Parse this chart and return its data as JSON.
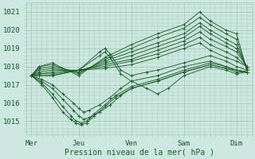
{
  "xlabel": "Pression niveau de la mer( hPa )",
  "yticks": [
    1015,
    1016,
    1017,
    1018,
    1019,
    1020,
    1021
  ],
  "ylim": [
    1014.3,
    1021.5
  ],
  "xlim": [
    0,
    4.3
  ],
  "xtick_labels": [
    "Mer",
    "Jeu",
    "Ven",
    "Sam",
    "Dim"
  ],
  "xtick_positions": [
    0.1,
    1.0,
    2.0,
    3.0,
    4.0
  ],
  "background_color": "#cce8e0",
  "grid_color": "#a8c8b8",
  "line_color": "#1a5c28",
  "text_color": "#1a5c28",
  "figsize": [
    3.2,
    2.0
  ],
  "dpi": 100,
  "ensemble_lines": [
    [
      [
        0.1,
        1017.5
      ],
      [
        0.25,
        1018.0
      ],
      [
        0.5,
        1018.2
      ],
      [
        1.0,
        1017.5
      ],
      [
        1.5,
        1018.5
      ],
      [
        2.0,
        1019.2
      ],
      [
        2.5,
        1019.8
      ],
      [
        3.0,
        1020.3
      ],
      [
        3.3,
        1021.0
      ],
      [
        3.5,
        1020.5
      ],
      [
        3.8,
        1020.0
      ],
      [
        4.0,
        1019.8
      ],
      [
        4.2,
        1017.8
      ]
    ],
    [
      [
        0.1,
        1017.5
      ],
      [
        0.25,
        1018.0
      ],
      [
        0.5,
        1018.1
      ],
      [
        1.0,
        1017.6
      ],
      [
        1.5,
        1018.4
      ],
      [
        2.0,
        1019.0
      ],
      [
        2.5,
        1019.6
      ],
      [
        3.0,
        1020.1
      ],
      [
        3.3,
        1020.7
      ],
      [
        3.5,
        1020.3
      ],
      [
        3.8,
        1019.8
      ],
      [
        4.0,
        1019.5
      ],
      [
        4.2,
        1017.8
      ]
    ],
    [
      [
        0.1,
        1017.5
      ],
      [
        0.25,
        1017.9
      ],
      [
        0.5,
        1018.0
      ],
      [
        1.0,
        1017.7
      ],
      [
        1.5,
        1018.3
      ],
      [
        2.0,
        1018.8
      ],
      [
        2.5,
        1019.3
      ],
      [
        3.0,
        1019.8
      ],
      [
        3.3,
        1020.4
      ],
      [
        3.5,
        1020.0
      ],
      [
        3.8,
        1019.5
      ],
      [
        4.0,
        1019.2
      ],
      [
        4.2,
        1017.9
      ]
    ],
    [
      [
        0.1,
        1017.5
      ],
      [
        0.25,
        1017.8
      ],
      [
        0.5,
        1017.9
      ],
      [
        1.0,
        1017.7
      ],
      [
        1.5,
        1018.2
      ],
      [
        2.0,
        1018.6
      ],
      [
        2.5,
        1019.1
      ],
      [
        3.0,
        1019.6
      ],
      [
        3.3,
        1020.2
      ],
      [
        3.5,
        1019.8
      ],
      [
        3.8,
        1019.3
      ],
      [
        4.0,
        1019.0
      ],
      [
        4.2,
        1018.0
      ]
    ],
    [
      [
        0.1,
        1017.5
      ],
      [
        0.25,
        1017.7
      ],
      [
        0.5,
        1017.8
      ],
      [
        1.0,
        1017.8
      ],
      [
        1.5,
        1018.1
      ],
      [
        2.0,
        1018.4
      ],
      [
        2.5,
        1018.9
      ],
      [
        3.0,
        1019.4
      ],
      [
        3.3,
        1019.9
      ],
      [
        3.5,
        1019.5
      ],
      [
        3.8,
        1019.1
      ],
      [
        4.0,
        1018.8
      ],
      [
        4.2,
        1018.0
      ]
    ],
    [
      [
        0.1,
        1017.5
      ],
      [
        0.25,
        1017.6
      ],
      [
        0.5,
        1017.7
      ],
      [
        1.0,
        1017.8
      ],
      [
        1.5,
        1018.0
      ],
      [
        2.0,
        1018.3
      ],
      [
        2.5,
        1018.7
      ],
      [
        3.0,
        1019.2
      ],
      [
        3.3,
        1019.6
      ],
      [
        3.5,
        1019.2
      ],
      [
        3.8,
        1018.8
      ],
      [
        4.0,
        1018.5
      ],
      [
        4.2,
        1018.0
      ]
    ],
    [
      [
        0.1,
        1017.5
      ],
      [
        0.25,
        1017.6
      ],
      [
        0.5,
        1017.6
      ],
      [
        1.0,
        1017.8
      ],
      [
        1.5,
        1017.9
      ],
      [
        2.0,
        1018.1
      ],
      [
        2.5,
        1018.5
      ],
      [
        3.0,
        1019.0
      ],
      [
        3.3,
        1019.3
      ],
      [
        3.5,
        1018.9
      ],
      [
        3.8,
        1018.5
      ],
      [
        4.0,
        1018.3
      ],
      [
        4.2,
        1018.0
      ]
    ],
    [
      [
        0.1,
        1017.5
      ],
      [
        0.25,
        1017.5
      ],
      [
        0.5,
        1017.5
      ],
      [
        1.0,
        1017.8
      ],
      [
        1.4,
        1018.8
      ],
      [
        1.5,
        1019.0
      ],
      [
        1.6,
        1018.7
      ],
      [
        1.8,
        1017.8
      ],
      [
        2.0,
        1017.5
      ],
      [
        2.3,
        1017.7
      ],
      [
        2.5,
        1017.8
      ],
      [
        3.0,
        1018.2
      ],
      [
        3.5,
        1018.6
      ],
      [
        3.8,
        1018.3
      ],
      [
        4.0,
        1018.0
      ],
      [
        4.2,
        1017.8
      ]
    ],
    [
      [
        0.1,
        1017.5
      ],
      [
        0.25,
        1017.5
      ],
      [
        0.5,
        1017.5
      ],
      [
        1.0,
        1017.8
      ],
      [
        1.4,
        1018.6
      ],
      [
        1.5,
        1018.8
      ],
      [
        1.6,
        1018.5
      ],
      [
        1.8,
        1017.6
      ],
      [
        2.0,
        1017.2
      ],
      [
        2.3,
        1016.8
      ],
      [
        2.5,
        1016.5
      ],
      [
        2.7,
        1016.8
      ],
      [
        3.0,
        1017.5
      ],
      [
        3.5,
        1018.0
      ],
      [
        3.8,
        1017.8
      ],
      [
        4.0,
        1017.6
      ],
      [
        4.2,
        1017.7
      ]
    ],
    [
      [
        0.1,
        1017.5
      ],
      [
        0.3,
        1017.3
      ],
      [
        0.5,
        1017.0
      ],
      [
        0.7,
        1016.5
      ],
      [
        0.9,
        1016.0
      ],
      [
        1.0,
        1015.7
      ],
      [
        1.1,
        1015.5
      ],
      [
        1.2,
        1015.6
      ],
      [
        1.4,
        1015.9
      ],
      [
        1.6,
        1016.3
      ],
      [
        1.8,
        1016.8
      ],
      [
        2.0,
        1017.2
      ],
      [
        2.5,
        1017.5
      ],
      [
        3.0,
        1018.0
      ],
      [
        3.5,
        1018.3
      ],
      [
        3.8,
        1018.0
      ],
      [
        4.0,
        1017.8
      ],
      [
        4.2,
        1017.7
      ]
    ],
    [
      [
        0.1,
        1017.5
      ],
      [
        0.3,
        1017.2
      ],
      [
        0.5,
        1016.8
      ],
      [
        0.7,
        1016.2
      ],
      [
        0.9,
        1015.6
      ],
      [
        1.0,
        1015.3
      ],
      [
        1.1,
        1015.1
      ],
      [
        1.2,
        1015.2
      ],
      [
        1.4,
        1015.5
      ],
      [
        1.6,
        1015.9
      ],
      [
        1.8,
        1016.4
      ],
      [
        2.0,
        1016.8
      ],
      [
        2.5,
        1017.2
      ],
      [
        3.0,
        1017.7
      ],
      [
        3.5,
        1018.1
      ],
      [
        3.8,
        1017.9
      ],
      [
        4.0,
        1017.7
      ],
      [
        4.2,
        1017.7
      ]
    ],
    [
      [
        0.1,
        1017.5
      ],
      [
        0.3,
        1017.1
      ],
      [
        0.5,
        1016.5
      ],
      [
        0.7,
        1015.8
      ],
      [
        0.85,
        1015.3
      ],
      [
        0.95,
        1015.0
      ],
      [
        1.05,
        1014.9
      ],
      [
        1.15,
        1015.0
      ],
      [
        1.3,
        1015.4
      ],
      [
        1.5,
        1015.9
      ],
      [
        1.7,
        1016.4
      ],
      [
        2.0,
        1016.9
      ],
      [
        2.5,
        1017.3
      ],
      [
        3.0,
        1017.8
      ],
      [
        3.5,
        1018.2
      ],
      [
        3.8,
        1018.0
      ],
      [
        4.0,
        1017.8
      ],
      [
        4.2,
        1017.7
      ]
    ],
    [
      [
        0.1,
        1017.5
      ],
      [
        0.3,
        1017.0
      ],
      [
        0.5,
        1016.3
      ],
      [
        0.7,
        1015.5
      ],
      [
        0.85,
        1015.1
      ],
      [
        0.95,
        1014.9
      ],
      [
        1.05,
        1014.8
      ],
      [
        1.15,
        1014.9
      ],
      [
        1.3,
        1015.3
      ],
      [
        1.5,
        1015.8
      ],
      [
        1.7,
        1016.3
      ],
      [
        2.0,
        1016.8
      ],
      [
        2.5,
        1017.2
      ],
      [
        3.0,
        1017.7
      ],
      [
        3.5,
        1018.1
      ],
      [
        3.8,
        1017.9
      ],
      [
        4.0,
        1017.8
      ],
      [
        4.2,
        1017.7
      ]
    ]
  ]
}
